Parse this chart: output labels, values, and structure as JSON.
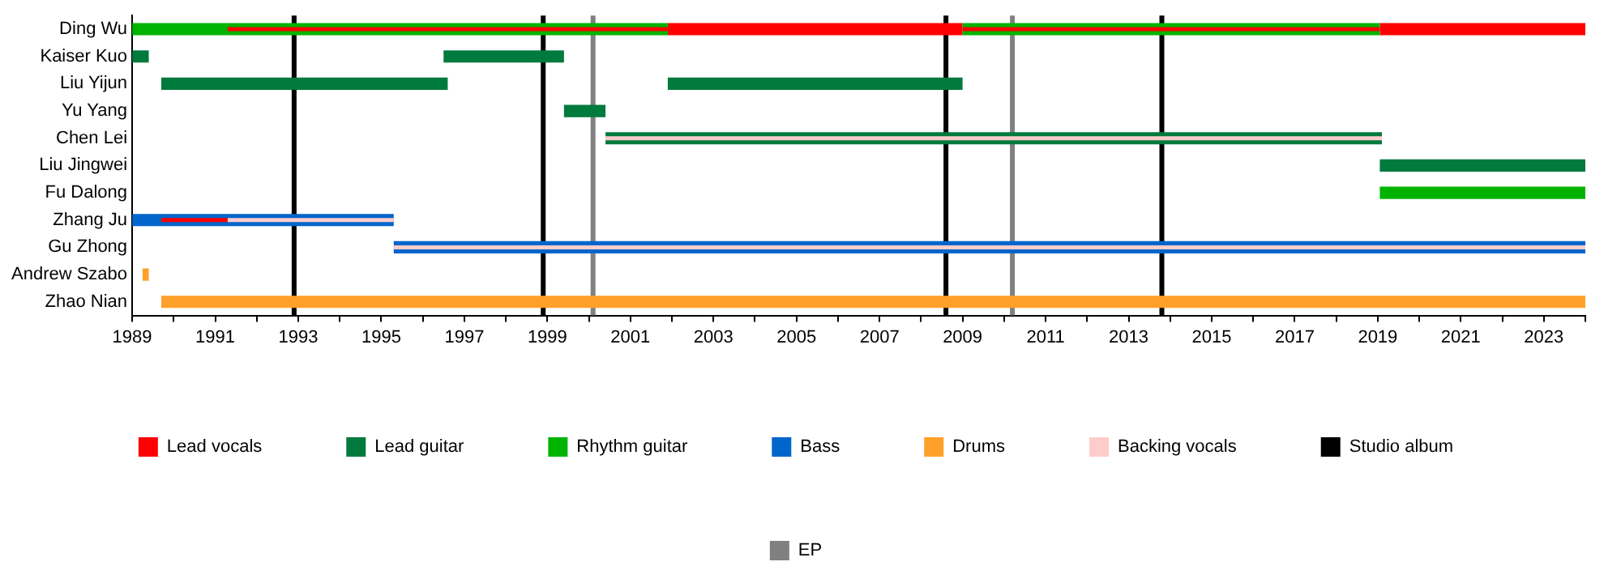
{
  "chart_data": {
    "type": "bar",
    "orientation": "horizontal",
    "legend": "bottom",
    "grid": false,
    "categories": [
      "Ding Wu",
      "Kaiser Kuo",
      "Liu Yijun",
      "Yu Yang",
      "Chen Lei",
      "Liu Jingwei",
      "Fu Dalong",
      "Zhang Ju",
      "Gu Zhong",
      "Andrew Szabo",
      "Zhao Nian"
    ],
    "xlim": [
      1989,
      2024
    ],
    "xticks": [
      1989,
      {
        "value": 1990,
        "label": null
      },
      1991,
      {
        "value": 1992,
        "label": null
      },
      1993,
      {
        "value": 1994,
        "label": null
      },
      1995,
      {
        "value": 1996,
        "label": null
      },
      1997,
      {
        "value": 1998,
        "label": null
      },
      1999,
      {
        "value": 2000,
        "label": null
      },
      2001,
      {
        "value": 2002,
        "label": null
      },
      2003,
      {
        "value": 2004,
        "label": null
      },
      2005,
      {
        "value": 2006,
        "label": null
      },
      2007,
      {
        "value": 2008,
        "label": null
      },
      2009,
      {
        "value": 2010,
        "label": null
      },
      2011,
      {
        "value": 2012,
        "label": null
      },
      2013,
      {
        "value": 2014,
        "label": null
      },
      2015,
      {
        "value": 2016,
        "label": null
      },
      2017,
      {
        "value": 2018,
        "label": null
      },
      2019,
      {
        "value": 2020,
        "label": null
      },
      2021,
      {
        "value": 2022,
        "label": null
      },
      2023,
      {
        "value": 2024,
        "label": null
      }
    ],
    "series": [
      {
        "name": "Lead vocals",
        "color": "#ff0000",
        "values": [
          7.1,
          null,
          null,
          null,
          null,
          null,
          null,
          null,
          null,
          null,
          null
        ],
        "base": [
          2001.9,
          null,
          null,
          null,
          null,
          null,
          null,
          null,
          null,
          null,
          null
        ]
      },
      {
        "color": "#ff0000",
        "values": [
          4.95,
          null,
          null,
          null,
          null,
          null,
          null,
          null,
          null,
          null,
          null
        ],
        "base": [
          2019.05,
          null,
          null,
          null,
          null,
          null,
          null,
          null,
          null,
          null,
          null
        ]
      },
      {
        "name": "Lead guitar",
        "color": "#007a3d",
        "values": [
          null,
          0.4,
          6.9,
          1.0,
          18.7,
          4.95,
          null,
          null,
          null,
          null,
          null
        ],
        "base": [
          null,
          1989,
          1989.7,
          1999.4,
          2000.4,
          2019.05,
          null,
          null,
          null,
          null,
          null
        ]
      },
      {
        "color": "#007a3d",
        "values": [
          null,
          2.9,
          7.1,
          null,
          null,
          null,
          null,
          null,
          null,
          null,
          null
        ],
        "base": [
          null,
          1996.5,
          2001.9,
          null,
          null,
          null,
          null,
          null,
          null,
          null,
          null
        ]
      },
      {
        "name": "Rhythm guitar",
        "color": "#00b300",
        "values": [
          12.9,
          null,
          null,
          null,
          null,
          null,
          4.95,
          null,
          null,
          null,
          null
        ],
        "base": [
          1989,
          null,
          null,
          null,
          null,
          null,
          2019.05,
          null,
          null,
          null,
          null
        ]
      },
      {
        "color": "#00b300",
        "values": [
          10.05,
          null,
          null,
          null,
          null,
          null,
          null,
          null,
          null,
          null,
          null
        ],
        "base": [
          2009,
          null,
          null,
          null,
          null,
          null,
          null,
          null,
          null,
          null,
          null
        ]
      },
      {
        "name": "Bass",
        "color": "#0066cc",
        "values": [
          null,
          null,
          null,
          null,
          null,
          null,
          null,
          6.3,
          28.7,
          null,
          null
        ],
        "base": [
          null,
          null,
          null,
          null,
          null,
          null,
          null,
          1989,
          1995.3,
          null,
          null
        ]
      },
      {
        "name": "Drums",
        "color": "#ffa02a",
        "values": [
          null,
          null,
          null,
          null,
          null,
          null,
          null,
          null,
          null,
          0.15,
          34.3
        ],
        "base": [
          null,
          null,
          null,
          null,
          null,
          null,
          null,
          null,
          null,
          1989.25,
          1989.7
        ]
      },
      {
        "color": "#ff0000",
        "values": [
          10.6,
          null,
          null,
          null,
          null,
          null,
          null,
          1.6,
          null,
          null,
          null
        ],
        "base": [
          1991.3,
          null,
          null,
          null,
          null,
          null,
          null,
          1989.7,
          null,
          null,
          null
        ]
      },
      {
        "color": "#ff0000",
        "values": [
          10.05,
          null,
          null,
          null,
          null,
          null,
          null,
          null,
          null,
          null,
          null
        ],
        "base": [
          2009,
          null,
          null,
          null,
          null,
          null,
          null,
          null,
          null,
          null,
          null
        ]
      },
      {
        "name": "Backing vocals",
        "color": "#ffcccc",
        "values": [
          null,
          null,
          null,
          null,
          18.7,
          null,
          null,
          4.0,
          28.7,
          null,
          null
        ],
        "base": [
          null,
          null,
          null,
          null,
          2000.4,
          null,
          null,
          1991.3,
          1995.3,
          null,
          null
        ]
      }
    ],
    "ref_lines": [
      {
        "axis": "x",
        "value": 1992.9,
        "label": "Studio album",
        "color": "#000000"
      },
      {
        "axis": "x",
        "value": 1998.9,
        "color": "#000000"
      },
      {
        "axis": "x",
        "value": 2008.6,
        "color": "#000000"
      },
      {
        "axis": "x",
        "value": 2013.8,
        "color": "#000000"
      },
      {
        "axis": "x",
        "value": 2000.1,
        "label": "EP",
        "color": "#808080"
      },
      {
        "axis": "x",
        "value": 2010.2,
        "color": "#808080"
      }
    ]
  }
}
